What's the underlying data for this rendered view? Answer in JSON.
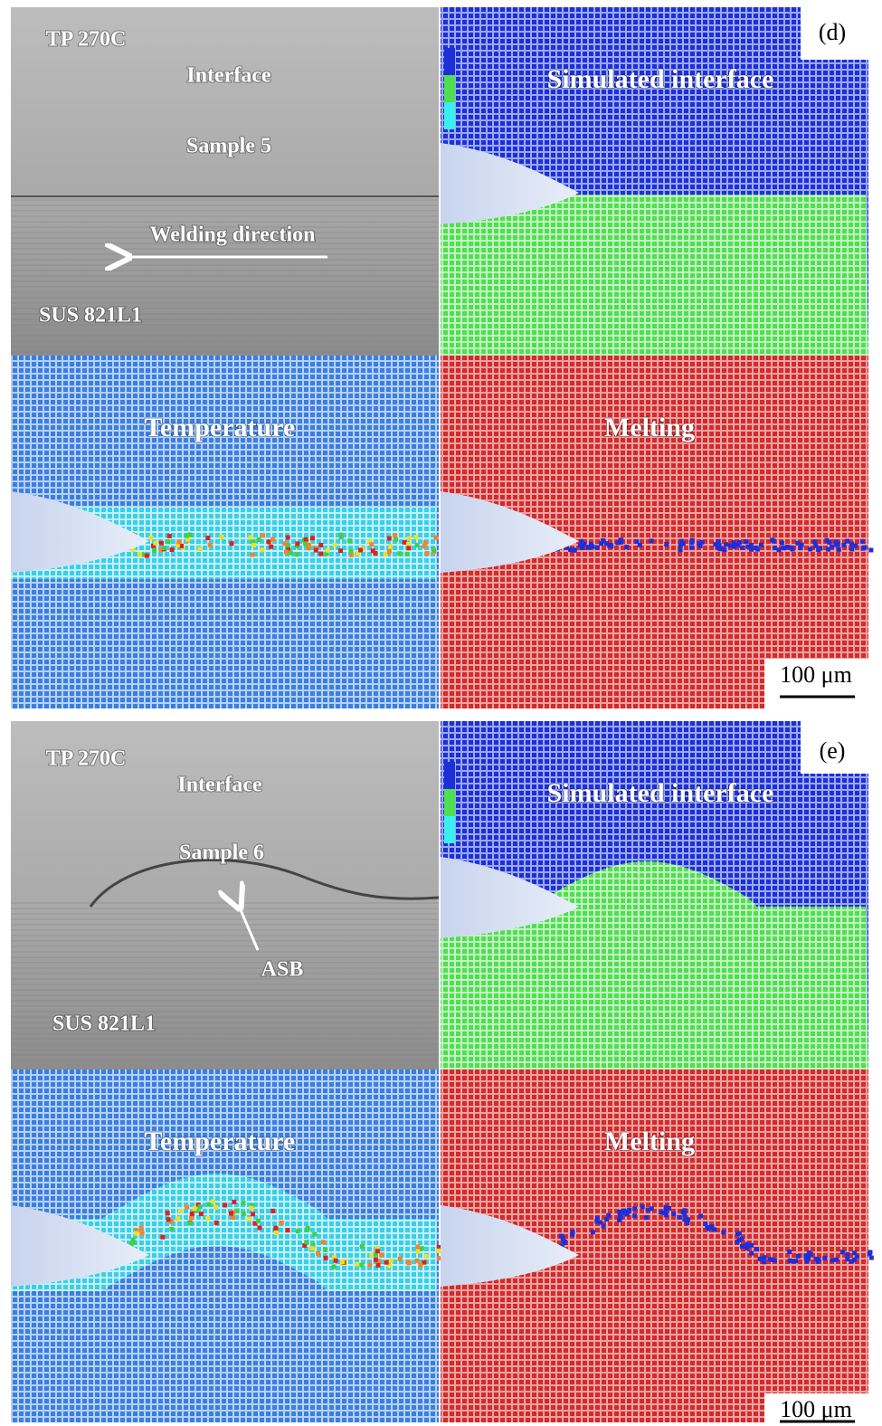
{
  "groups": [
    {
      "label": "(d)",
      "micrograph": {
        "condition": "TP 270C",
        "interface": "Interface",
        "sample": "Sample 5",
        "direction": "Welding direction",
        "base": "SUS 821L1"
      },
      "simulation_title": "Simulated interface",
      "temperature_title": "Temperature",
      "melting_title": "Melting",
      "scale_bar": "100 μm"
    },
    {
      "label": "(e)",
      "micrograph": {
        "condition": "TP 270C",
        "interface": "Interface",
        "sample": "Sample 6",
        "feature": "ASB",
        "base": "SUS 821L1"
      },
      "simulation_title": "Simulated interface",
      "temperature_title": "Temperature",
      "melting_title": "Melting",
      "scale_bar": "100 μm"
    }
  ]
}
